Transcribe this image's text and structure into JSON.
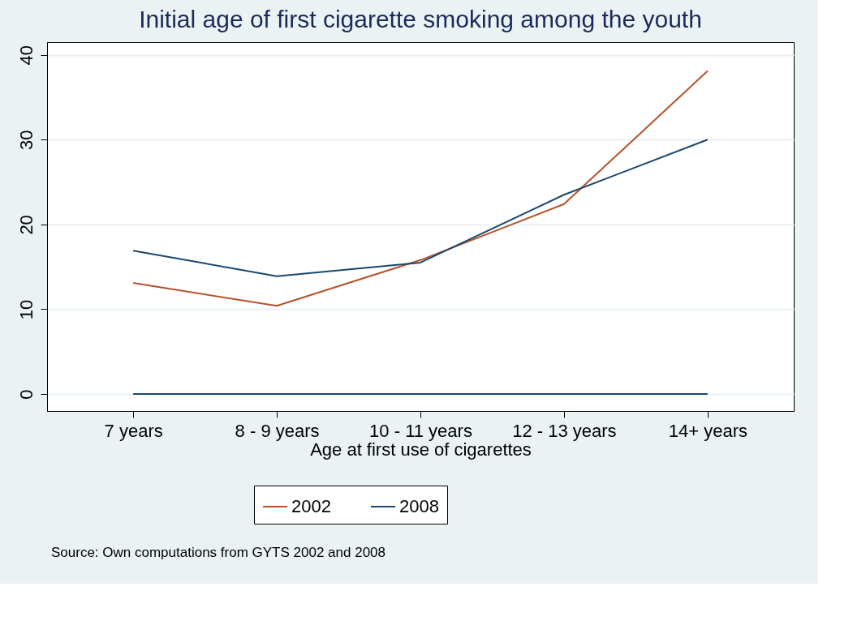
{
  "chart_data": {
    "type": "line",
    "title": "Initial age of first cigarette smoking among the youth",
    "xlabel": "Age at first use of cigarettes",
    "categories": [
      "7 years",
      "8 - 9 years",
      "10 - 11 years",
      "12 - 13 years",
      "14+ years"
    ],
    "series": [
      {
        "name": "2002",
        "color": "#b5522b",
        "values": [
          13.1,
          10.4,
          15.8,
          22.4,
          38.1
        ]
      },
      {
        "name": "2008",
        "color": "#1a476f",
        "values": [
          16.9,
          13.9,
          15.5,
          23.5,
          30.0
        ]
      },
      {
        "color": "#1a476f",
        "values": [
          0,
          0,
          0,
          0,
          0
        ]
      }
    ],
    "ylim": [
      -2,
      41.5
    ],
    "yticks": [
      0,
      10,
      20,
      30,
      40
    ],
    "grid": "y",
    "legend": "bottom",
    "marker": "none",
    "line_style": "solid",
    "annotations": [
      "Source: Own computations from GYTS 2002 and 2008"
    ]
  }
}
